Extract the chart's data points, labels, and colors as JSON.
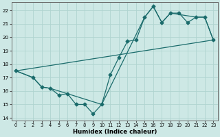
{
  "xlabel": "Humidex (Indice chaleur)",
  "xlim": [
    -0.5,
    23.5
  ],
  "ylim": [
    13.8,
    22.6
  ],
  "yticks": [
    14,
    15,
    16,
    17,
    18,
    19,
    20,
    21,
    22
  ],
  "xticks": [
    0,
    1,
    2,
    3,
    4,
    5,
    6,
    7,
    8,
    9,
    10,
    11,
    12,
    13,
    14,
    15,
    16,
    17,
    18,
    19,
    20,
    21,
    22,
    23
  ],
  "bg_color": "#cde8e5",
  "line_color": "#1a6b6b",
  "grid_color": "#b0d4d0",
  "line1_x": [
    0,
    2,
    3,
    4,
    5,
    6,
    7,
    8,
    9,
    10,
    11,
    12,
    13,
    14,
    15,
    16,
    17,
    18,
    19,
    20,
    21,
    22,
    23
  ],
  "line1_y": [
    17.5,
    17.0,
    16.3,
    16.2,
    15.7,
    15.8,
    15.0,
    15.0,
    14.3,
    15.0,
    17.2,
    18.5,
    19.7,
    19.8,
    21.5,
    22.3,
    21.1,
    21.8,
    21.8,
    21.1,
    21.5,
    21.5,
    19.8
  ],
  "line2_x": [
    0,
    2,
    3,
    4,
    10,
    15,
    16,
    17,
    18,
    21,
    22,
    23
  ],
  "line2_y": [
    17.5,
    17.0,
    16.3,
    16.2,
    15.0,
    21.5,
    22.3,
    21.1,
    21.8,
    21.5,
    21.5,
    19.8
  ],
  "line3_x": [
    0,
    23
  ],
  "line3_y": [
    17.5,
    19.8
  ],
  "markersize": 2.5,
  "linewidth": 0.9
}
